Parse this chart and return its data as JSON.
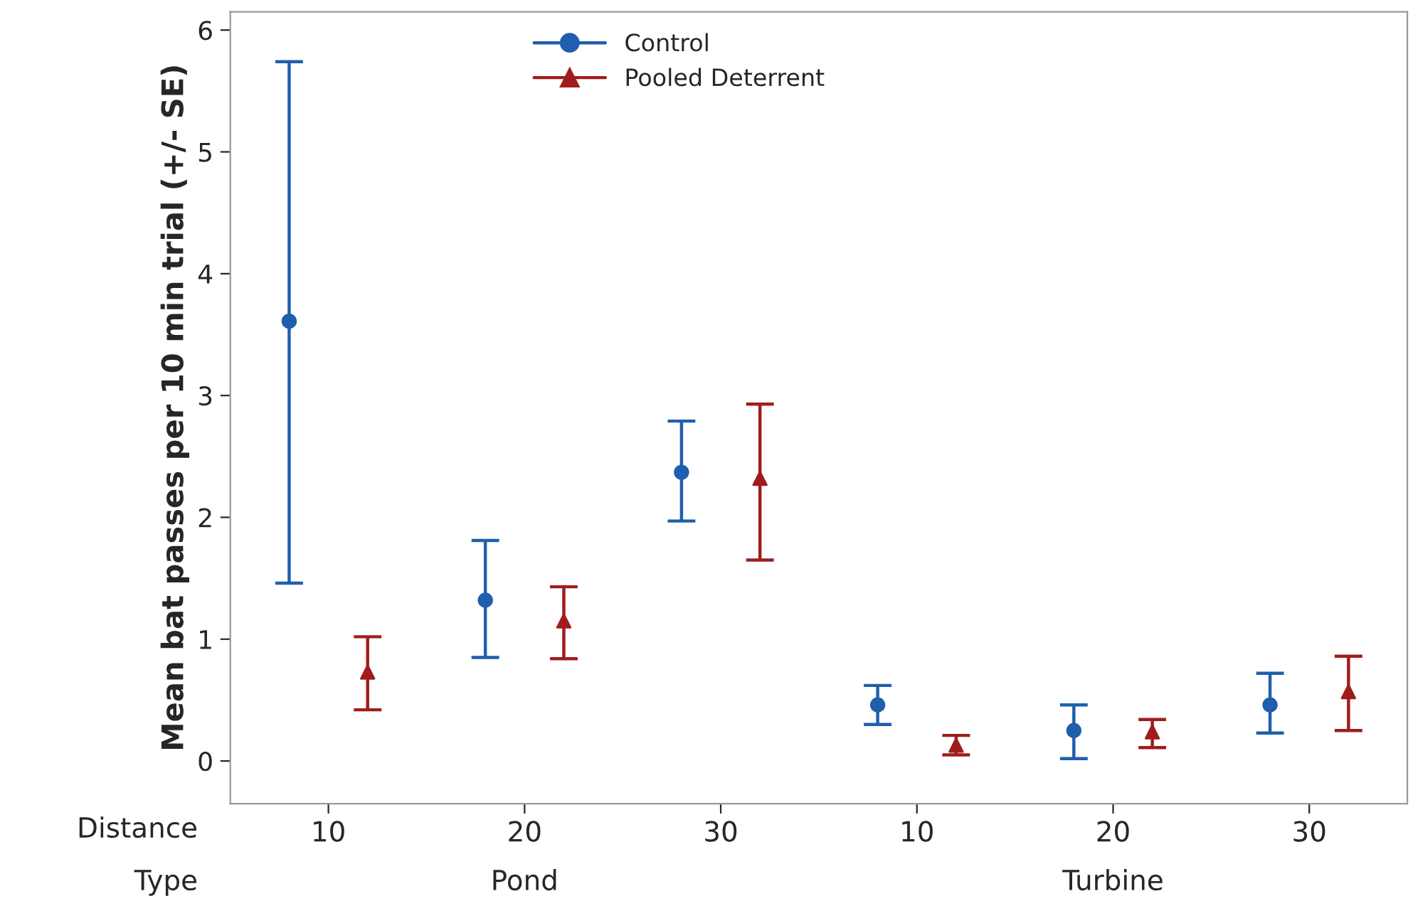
{
  "chart_data": {
    "type": "scatter",
    "ylabel": "Mean bat passes per 10 min trial (+/- SE)",
    "categories": [
      "10",
      "20",
      "30",
      "10",
      "20",
      "30"
    ],
    "series": [
      {
        "name": "Control",
        "color": "#1f5fad",
        "marker": "circle",
        "values": [
          3.61,
          1.32,
          2.37,
          0.46,
          0.25,
          0.46
        ],
        "errors": [
          [
            1.46,
            5.74
          ],
          [
            0.85,
            1.81
          ],
          [
            1.97,
            2.79
          ],
          [
            0.3,
            0.62
          ],
          [
            0.02,
            0.46
          ],
          [
            0.23,
            0.72
          ]
        ]
      },
      {
        "name": "Pooled Deterrent",
        "color": "#a01c1c",
        "marker": "triangle",
        "values": [
          0.73,
          1.15,
          2.32,
          0.13,
          0.24,
          0.57
        ],
        "errors": [
          [
            0.42,
            1.02
          ],
          [
            0.84,
            1.43
          ],
          [
            1.65,
            2.93
          ],
          [
            0.05,
            0.21
          ],
          [
            0.11,
            0.34
          ],
          [
            0.25,
            0.86
          ]
        ]
      }
    ],
    "annotations": [
      "Distance",
      "Type",
      "Pond",
      "Turbine"
    ],
    "ylim": [
      -0.35,
      6.15
    ],
    "yticks": [
      0,
      1,
      2,
      3,
      4,
      5,
      6
    ],
    "grid": false,
    "legend": "top"
  }
}
